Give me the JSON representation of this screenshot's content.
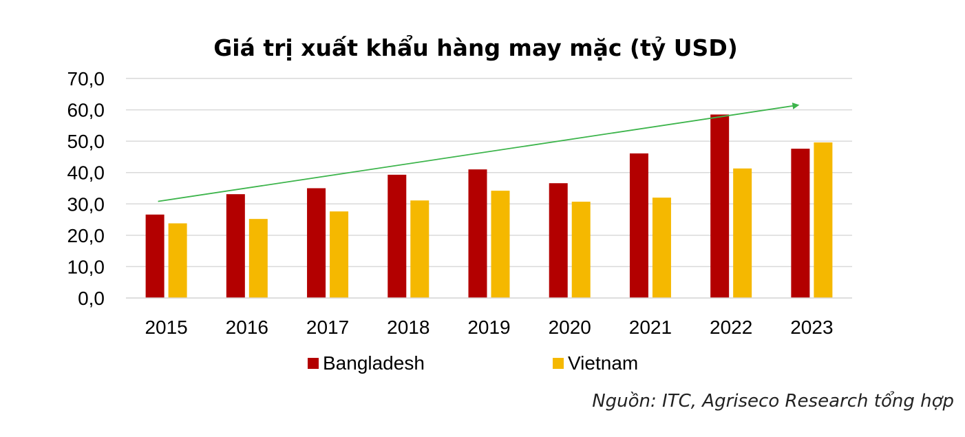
{
  "chart_data": {
    "type": "bar",
    "title": "Giá trị xuất khẩu hàng may mặc (tỷ USD)",
    "categories": [
      "2015",
      "2016",
      "2017",
      "2018",
      "2019",
      "2020",
      "2021",
      "2022",
      "2023"
    ],
    "series": [
      {
        "name": "Bangladesh",
        "color": "#B30000",
        "values": [
          26.6,
          33.1,
          35.0,
          39.3,
          41.0,
          36.6,
          46.1,
          58.5,
          47.6
        ]
      },
      {
        "name": "Vietnam",
        "color": "#F5B800",
        "values": [
          23.8,
          25.2,
          27.6,
          31.1,
          34.2,
          30.7,
          32.0,
          41.3,
          49.6
        ]
      }
    ],
    "y_ticks": [
      "0,0",
      "10,0",
      "20,0",
      "30,0",
      "40,0",
      "50,0",
      "60,0",
      "70,0"
    ],
    "ylim": [
      0,
      70
    ],
    "grid": true,
    "legend_position": "bottom",
    "trend_arrow": {
      "color": "#3CB44B",
      "from": {
        "x": "2015",
        "y": 30.8
      },
      "to": {
        "x": "2023",
        "y": 61.5
      }
    }
  },
  "source_note": "Nguồn: ITC, Agriseco Research tổng hợp"
}
